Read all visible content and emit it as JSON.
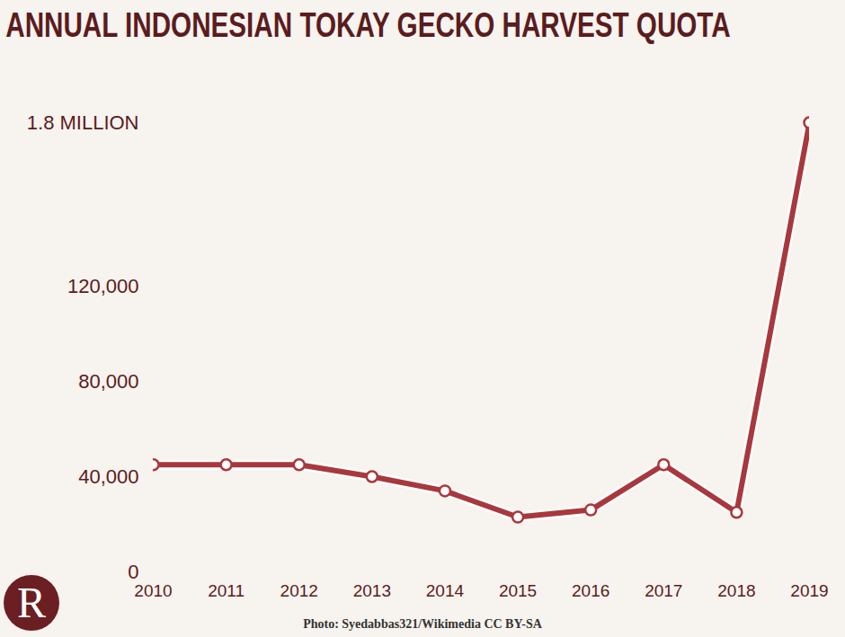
{
  "chart_data": {
    "type": "line",
    "title": "ANNUAL INDONESIAN TOKAY GECKO HARVEST QUOTA",
    "x": [
      2010,
      2011,
      2012,
      2013,
      2014,
      2015,
      2016,
      2017,
      2018,
      2019
    ],
    "values": [
      45000,
      45000,
      45000,
      40000,
      34000,
      23000,
      26000,
      45000,
      25000,
      1800000
    ],
    "color": "#a8383d",
    "marker": "circle",
    "xlim": [
      2010,
      2019
    ],
    "xticks": [
      2010,
      2011,
      2012,
      2013,
      2014,
      2015,
      2016,
      2017,
      2018,
      2019
    ],
    "ylim": [
      0,
      1800000
    ],
    "yticks": [
      0,
      {
        "value": 40000,
        "label": "40,000"
      },
      {
        "value": 80000,
        "label": "80,000"
      },
      {
        "value": 120000,
        "label": "120,000"
      },
      {
        "value": 1800000,
        "label": "1.8 MILLION"
      }
    ],
    "grid": false,
    "caption": "Photo: Syedabbas321/Wikimedia CC BY-SA",
    "logo": "R"
  }
}
